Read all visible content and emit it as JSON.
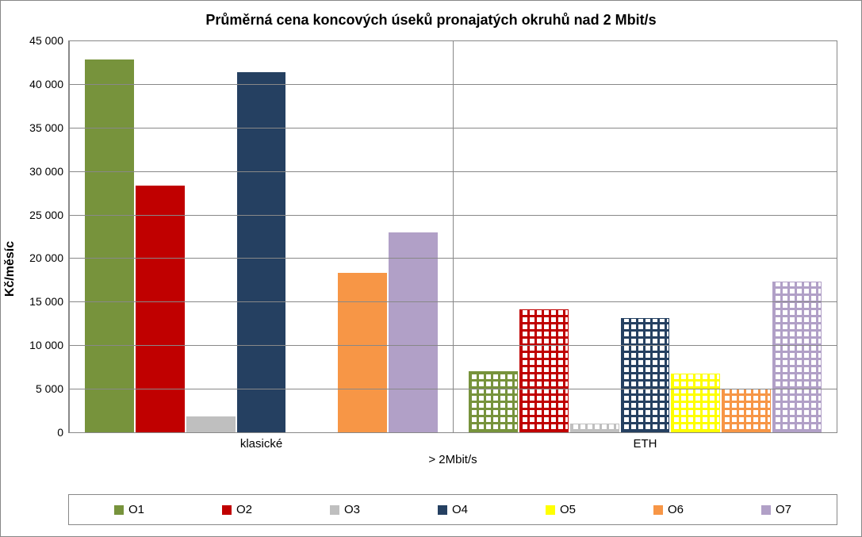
{
  "chart": {
    "type": "bar",
    "title": "Průměrná cena koncových úseků pronajatých okruhů nad 2 Mbit/s",
    "title_fontsize": 18,
    "ylabel": "Kč/měsíc",
    "xlabel": "> 2Mbit/s",
    "ylim": [
      0,
      45000
    ],
    "ytick_step": 5000,
    "ytick_labels": [
      "0",
      "5 000",
      "10 000",
      "15 000",
      "20 000",
      "25 000",
      "30 000",
      "35 000",
      "40 000",
      "45 000"
    ],
    "background_color": "#ffffff",
    "grid_color": "#888888",
    "axis_color": "#888888",
    "categories": [
      "klasické",
      "ETH"
    ],
    "series": [
      {
        "id": "O1",
        "label": "O1",
        "color": "#77933c"
      },
      {
        "id": "O2",
        "label": "O2",
        "color": "#c00000"
      },
      {
        "id": "O3",
        "label": "O3",
        "color": "#bfbfbf"
      },
      {
        "id": "O4",
        "label": "O4",
        "color": "#254061"
      },
      {
        "id": "O5",
        "label": "O5",
        "color": "#ffff00"
      },
      {
        "id": "O6",
        "label": "O6",
        "color": "#f79646"
      },
      {
        "id": "O7",
        "label": "O7",
        "color": "#b1a0c7"
      }
    ],
    "groups": [
      {
        "category": "klasické",
        "fill": "solid",
        "values": [
          42800,
          28300,
          1800,
          41400,
          0,
          18300,
          23000
        ]
      },
      {
        "category": "ETH",
        "fill": "pattern",
        "values": [
          7000,
          14100,
          1000,
          13100,
          6700,
          5000,
          17300
        ]
      }
    ],
    "label_fontsize": 15,
    "ylabel_fontsize": 16
  }
}
